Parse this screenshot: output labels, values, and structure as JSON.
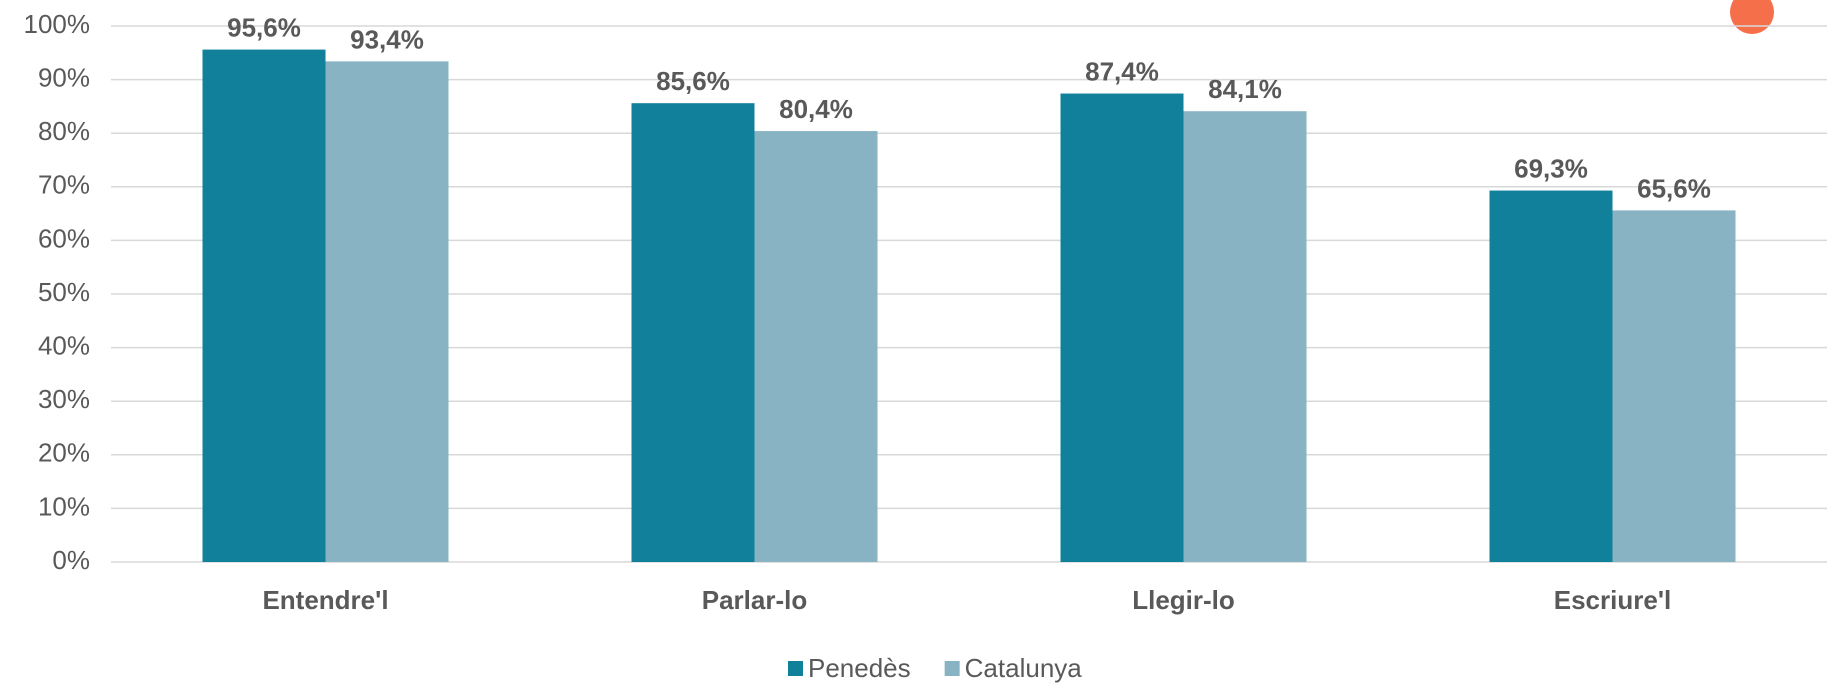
{
  "chart_data": {
    "type": "bar",
    "categories": [
      "Entendre'l",
      "Parlar-lo",
      "Llegir-lo",
      "Escriure'l"
    ],
    "series": [
      {
        "name": "Penedès",
        "color": "#11809a",
        "values": [
          95.6,
          85.6,
          87.4,
          69.3
        ],
        "value_labels": [
          "95,6%",
          "85,6%",
          "87,4%",
          "69,3%"
        ]
      },
      {
        "name": "Catalunya",
        "color": "#87b3c3",
        "values": [
          93.4,
          80.4,
          84.1,
          65.6
        ],
        "value_labels": [
          "93,4%",
          "80,4%",
          "84,1%",
          "65,6%"
        ]
      }
    ],
    "ylim": [
      0,
      100
    ],
    "yticks": [
      {
        "value": 0,
        "label": "0%"
      },
      {
        "value": 10,
        "label": "10%"
      },
      {
        "value": 20,
        "label": "20%"
      },
      {
        "value": 30,
        "label": "30%"
      },
      {
        "value": 40,
        "label": "40%"
      },
      {
        "value": 50,
        "label": "50%"
      },
      {
        "value": 60,
        "label": "60%"
      },
      {
        "value": 70,
        "label": "70%"
      },
      {
        "value": 80,
        "label": "80%"
      },
      {
        "value": 90,
        "label": "90%"
      },
      {
        "value": 100,
        "label": "100%"
      }
    ],
    "grid": true,
    "legend": "bottom"
  }
}
